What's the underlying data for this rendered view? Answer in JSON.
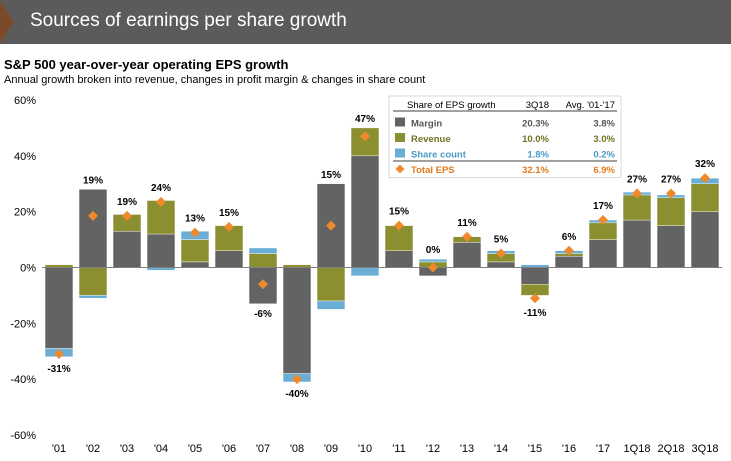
{
  "header": {
    "title": "Sources of earnings per share growth"
  },
  "colors": {
    "banner": "#5b5b5b",
    "margin": "#636363",
    "revenue": "#8b8f2f",
    "share_count": "#6aaed6",
    "total_eps": "#ee8a2b"
  },
  "chart_data": {
    "type": "bar",
    "stacked": true,
    "title": "S&P 500 year-over-year operating EPS growth",
    "subtitle": "Annual growth broken into revenue, changes in profit margin & changes in share count",
    "ylim": [
      -60,
      60
    ],
    "yticks": [
      "60%",
      "40%",
      "20%",
      "0%",
      "-20%",
      "-40%",
      "-60%"
    ],
    "ytick_values": [
      60,
      40,
      20,
      0,
      -20,
      -40,
      -60
    ],
    "grid": false,
    "categories": [
      "'01",
      "'02",
      "'03",
      "'04",
      "'05",
      "'06",
      "'07",
      "'08",
      "'09",
      "'10",
      "'11",
      "'12",
      "'13",
      "'14",
      "'15",
      "'16",
      "'17",
      "1Q18",
      "2Q18",
      "3Q18"
    ],
    "series": [
      {
        "name": "Margin",
        "values": [
          -29,
          28,
          13,
          12,
          2,
          6,
          -13,
          -38,
          30,
          40,
          6,
          -3,
          9,
          2,
          -6,
          4,
          10,
          17,
          15,
          20
        ]
      },
      {
        "name": "Revenue",
        "values": [
          1,
          -10,
          6,
          12,
          8,
          9,
          5,
          1,
          -12,
          10,
          9,
          2,
          2,
          3,
          -4,
          1,
          6,
          9,
          10,
          10
        ]
      },
      {
        "name": "Share count",
        "values": [
          -3,
          -1,
          0,
          -1,
          3,
          0,
          2,
          -3,
          -3,
          -3,
          0,
          1,
          0,
          1,
          1,
          1,
          1,
          1,
          1,
          2
        ]
      }
    ],
    "total_eps": {
      "name": "Total EPS",
      "values": [
        -31,
        18.5,
        18.5,
        23.5,
        12.5,
        14.5,
        -6,
        -40,
        15,
        47,
        15,
        0,
        11,
        5,
        -11,
        6,
        17,
        26.5,
        26.5,
        32
      ],
      "labels": [
        "-31%",
        "19%",
        "19%",
        "24%",
        "13%",
        "15%",
        "-6%",
        "-40%",
        "15%",
        "47%",
        "15%",
        "0%",
        "11%",
        "5%",
        "-11%",
        "6%",
        "17%",
        "27%",
        "27%",
        "32%"
      ]
    },
    "legend": {
      "placement": "top-right",
      "header": [
        "Share of EPS growth",
        "3Q18",
        "Avg. '01-'17"
      ],
      "rows": [
        {
          "name": "Margin",
          "q": "20.3%",
          "avg": "3.8%"
        },
        {
          "name": "Revenue",
          "q": "10.0%",
          "avg": "3.0%"
        },
        {
          "name": "Share count",
          "q": "1.8%",
          "avg": "0.2%"
        },
        {
          "name": "Total EPS",
          "q": "32.1%",
          "avg": "6.9%"
        }
      ]
    }
  }
}
